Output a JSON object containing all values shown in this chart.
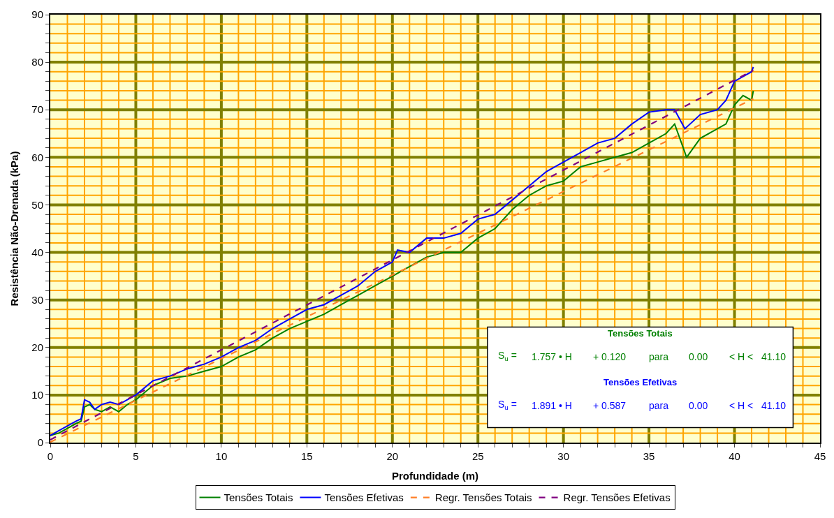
{
  "chart_data": {
    "type": "line",
    "xlabel": "Profundidade (m)",
    "ylabel": "Resistência Não-Drenada (kPa)",
    "xlim": [
      0,
      45
    ],
    "ylim": [
      0,
      90
    ],
    "xticks": [
      0,
      {
        "value": 1,
        "label": null
      },
      {
        "value": 2,
        "label": null
      },
      {
        "value": 3,
        "label": null
      },
      {
        "value": 4,
        "label": null
      },
      5,
      {
        "value": 6,
        "label": null
      },
      {
        "value": 7,
        "label": null
      },
      {
        "value": 8,
        "label": null
      },
      {
        "value": 9,
        "label": null
      },
      10,
      {
        "value": 11,
        "label": null
      },
      {
        "value": 12,
        "label": null
      },
      {
        "value": 13,
        "label": null
      },
      {
        "value": 14,
        "label": null
      },
      15,
      {
        "value": 16,
        "label": null
      },
      {
        "value": 17,
        "label": null
      },
      {
        "value": 18,
        "label": null
      },
      {
        "value": 19,
        "label": null
      },
      20,
      {
        "value": 21,
        "label": null
      },
      {
        "value": 22,
        "label": null
      },
      {
        "value": 23,
        "label": null
      },
      {
        "value": 24,
        "label": null
      },
      25,
      {
        "value": 26,
        "label": null
      },
      {
        "value": 27,
        "label": null
      },
      {
        "value": 28,
        "label": null
      },
      {
        "value": 29,
        "label": null
      },
      30,
      {
        "value": 31,
        "label": null
      },
      {
        "value": 32,
        "label": null
      },
      {
        "value": 33,
        "label": null
      },
      {
        "value": 34,
        "label": null
      },
      35,
      {
        "value": 36,
        "label": null
      },
      {
        "value": 37,
        "label": null
      },
      {
        "value": 38,
        "label": null
      },
      {
        "value": 39,
        "label": null
      },
      40,
      {
        "value": 41,
        "label": null
      },
      {
        "value": 42,
        "label": null
      },
      {
        "value": 43,
        "label": null
      },
      {
        "value": 44,
        "label": null
      },
      45
    ],
    "yticks": [
      0,
      {
        "value": 2,
        "label": null
      },
      {
        "value": 4,
        "label": null
      },
      {
        "value": 6,
        "label": null
      },
      {
        "value": 8,
        "label": null
      },
      10,
      {
        "value": 12,
        "label": null
      },
      {
        "value": 14,
        "label": null
      },
      {
        "value": 16,
        "label": null
      },
      {
        "value": 18,
        "label": null
      },
      20,
      {
        "value": 22,
        "label": null
      },
      {
        "value": 24,
        "label": null
      },
      {
        "value": 26,
        "label": null
      },
      {
        "value": 28,
        "label": null
      },
      30,
      {
        "value": 32,
        "label": null
      },
      {
        "value": 34,
        "label": null
      },
      {
        "value": 36,
        "label": null
      },
      {
        "value": 38,
        "label": null
      },
      40,
      {
        "value": 42,
        "label": null
      },
      {
        "value": 44,
        "label": null
      },
      {
        "value": 46,
        "label": null
      },
      {
        "value": 48,
        "label": null
      },
      50,
      {
        "value": 52,
        "label": null
      },
      {
        "value": 54,
        "label": null
      },
      {
        "value": 56,
        "label": null
      },
      {
        "value": 58,
        "label": null
      },
      60,
      {
        "value": 62,
        "label": null
      },
      {
        "value": 64,
        "label": null
      },
      {
        "value": 66,
        "label": null
      },
      {
        "value": 68,
        "label": null
      },
      70,
      {
        "value": 72,
        "label": null
      },
      {
        "value": 74,
        "label": null
      },
      {
        "value": 76,
        "label": null
      },
      {
        "value": 78,
        "label": null
      },
      80,
      {
        "value": 82,
        "label": null
      },
      {
        "value": 84,
        "label": null
      },
      {
        "value": 86,
        "label": null
      },
      {
        "value": 88,
        "label": null
      },
      90
    ],
    "grid": true,
    "legend": "bottom",
    "marker": "none",
    "series": [
      {
        "name": "Tensões Totais",
        "color": "#008000",
        "line_style": "solid",
        "x": [
          0,
          0.5,
          1,
          1.5,
          1.8,
          2,
          2.3,
          2.6,
          3,
          3.5,
          4,
          4.5,
          5,
          6,
          7,
          8,
          9,
          10,
          11,
          12,
          13,
          14,
          15,
          16,
          17,
          18,
          19,
          20,
          21,
          22,
          23,
          24,
          25,
          26,
          27,
          28,
          29,
          30,
          31,
          32,
          33,
          34,
          35,
          36,
          36.5,
          37,
          37.2,
          38,
          39,
          39.5,
          40,
          40.5,
          41,
          41.1
        ],
        "values": [
          1.5,
          2,
          3,
          4,
          4.5,
          7.5,
          8,
          7,
          6.5,
          7.5,
          6.5,
          8,
          9,
          12,
          13.5,
          14,
          15,
          16,
          18,
          19.5,
          22,
          24,
          25.5,
          27,
          29,
          31,
          33,
          35,
          37,
          39,
          40,
          40,
          43,
          45,
          49,
          52,
          54,
          55,
          58,
          59,
          60,
          61,
          63,
          65,
          67,
          62,
          60,
          64,
          66,
          67,
          71,
          73,
          72,
          74
        ]
      },
      {
        "name": "Tensões Efetivas",
        "color": "#0000ff",
        "line_style": "solid",
        "x": [
          0,
          0.5,
          1,
          1.5,
          1.8,
          2,
          2.3,
          2.6,
          3,
          3.5,
          4,
          4.5,
          5,
          6,
          7,
          8,
          9,
          10,
          11,
          12,
          13,
          14,
          15,
          16,
          17,
          18,
          19,
          20,
          20.3,
          21,
          22,
          23,
          24,
          25,
          26,
          27,
          28,
          29,
          30,
          31,
          32,
          33,
          34,
          35,
          36,
          36.5,
          37.1,
          38,
          39,
          39.5,
          40,
          40.5,
          41,
          41.1
        ],
        "values": [
          1.5,
          2.5,
          3.5,
          4.5,
          5,
          9,
          8.5,
          7,
          8,
          8.5,
          8,
          9,
          10,
          13,
          14,
          15.5,
          16.5,
          18,
          20,
          21.5,
          24,
          26,
          28,
          29,
          31,
          33,
          36,
          38,
          40.5,
          40,
          43,
          43,
          44,
          47,
          48,
          51,
          54,
          57,
          59,
          61,
          63,
          64,
          67,
          69.5,
          70,
          70,
          66,
          69,
          70,
          72,
          76,
          77,
          78,
          79
        ]
      },
      {
        "name": "Regr. Tensões Totais",
        "color": "#ff7f27",
        "line_style": "dashed",
        "x": [
          0,
          41.1
        ],
        "values": [
          0.1,
          72.3
        ]
      },
      {
        "name": "Regr. Tensões Efetivas",
        "color": "#800080",
        "line_style": "dashed",
        "x": [
          0,
          41.1
        ],
        "values": [
          0.6,
          78.3
        ]
      }
    ],
    "annotations": [
      "Tensões Totais",
      "S$_{u}$ =",
      "1.757 • H",
      "+ 0.120",
      "para",
      "0.00",
      "< H <",
      "41.10",
      "Tensões Efetivas",
      "S$_{u}$ =",
      "1.891 • H",
      "+ 0.587",
      "para",
      "0.00",
      "< H <",
      "41.10"
    ]
  }
}
